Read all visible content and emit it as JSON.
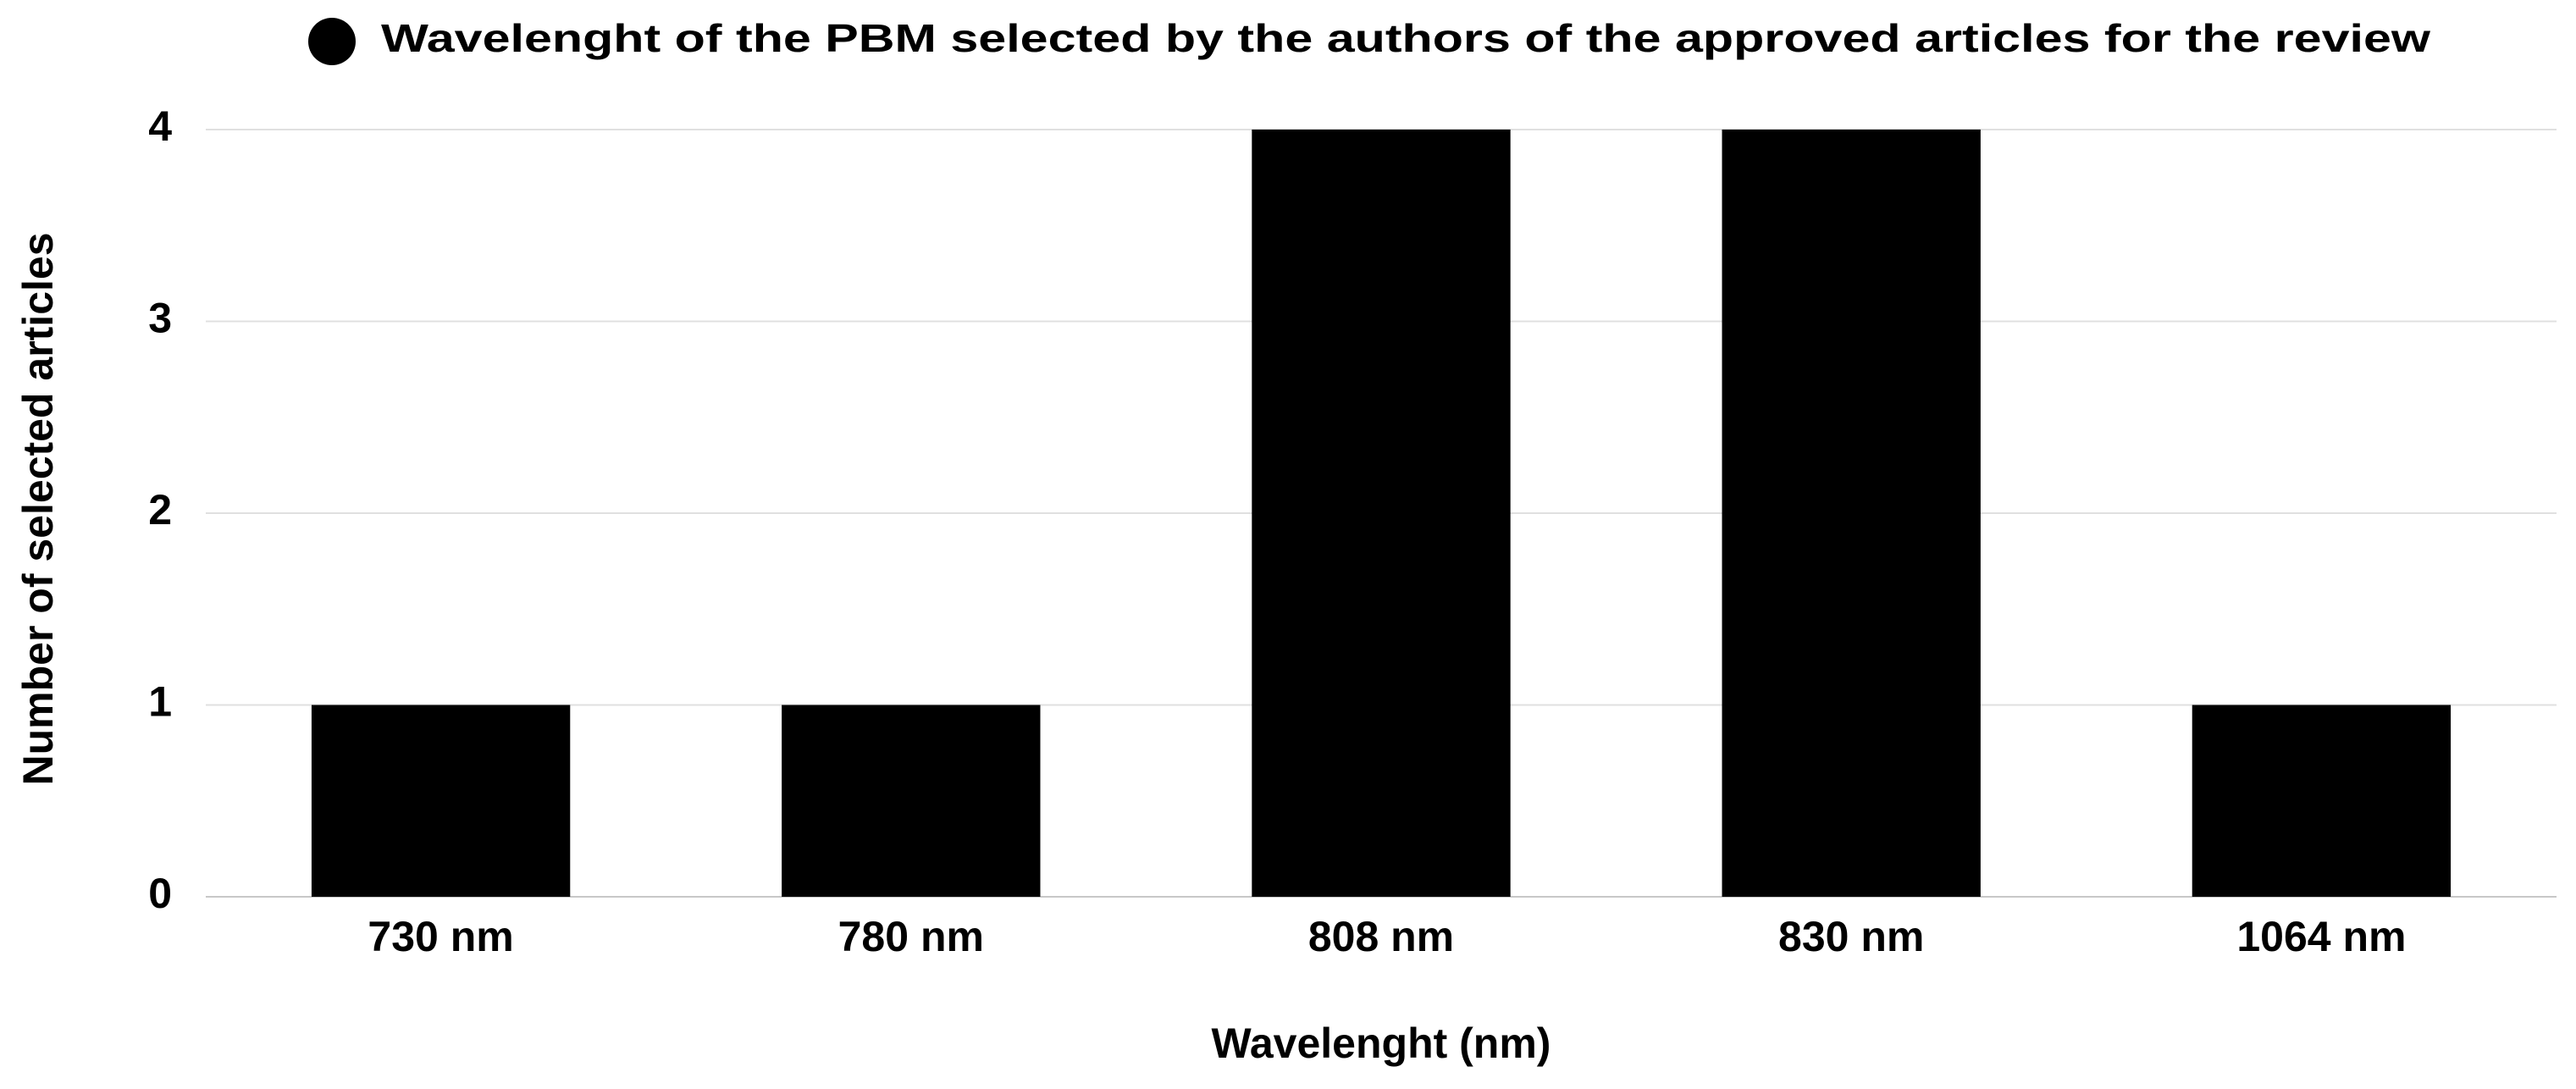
{
  "chart_data": {
    "type": "bar",
    "x_label": "Wavelenght (nm)",
    "y_label": "Number of selected articles",
    "categories": [
      "730 nm",
      "780 nm",
      "808 nm",
      "830 nm",
      "1064 nm"
    ],
    "series": [
      {
        "name": "Wavelenght of the PBM selected by the authors of the approved articles for the review",
        "color": "#000000",
        "values": [
          1,
          1,
          4,
          4,
          1
        ]
      }
    ],
    "ylim": [
      0,
      4
    ],
    "yticks": [
      0,
      1,
      2,
      3,
      4
    ],
    "grid": true,
    "legend": "top"
  }
}
